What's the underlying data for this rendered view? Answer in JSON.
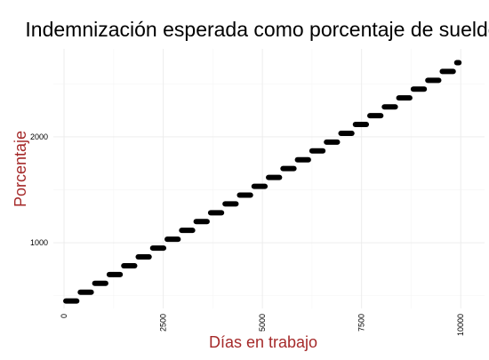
{
  "chart_data": {
    "type": "scatter",
    "title": "Indemnización esperada como porcentaje de sueldo",
    "xlabel": "Días en trabajo",
    "ylabel": "Porcentaje",
    "xlim": [
      -270,
      10600
    ],
    "ylim": [
      380,
      2830
    ],
    "xticks": [
      0,
      2500,
      5000,
      7500,
      10000
    ],
    "xtick_labels": [
      "0",
      "2500",
      "5000",
      "7500",
      "10000"
    ],
    "yticks": [
      1000,
      2000
    ],
    "ytick_labels": [
      "1000",
      "2000"
    ],
    "grid": true,
    "legend": "none",
    "step_days": 365,
    "series": [
      {
        "segments": [
          {
            "x0": 0,
            "x1": 365,
            "y": 450
          },
          {
            "x0": 365,
            "x1": 730,
            "y": 533
          },
          {
            "x0": 730,
            "x1": 1095,
            "y": 617
          },
          {
            "x0": 1095,
            "x1": 1460,
            "y": 700
          },
          {
            "x0": 1460,
            "x1": 1825,
            "y": 783
          },
          {
            "x0": 1825,
            "x1": 2190,
            "y": 867
          },
          {
            "x0": 2190,
            "x1": 2555,
            "y": 950
          },
          {
            "x0": 2555,
            "x1": 2920,
            "y": 1033
          },
          {
            "x0": 2920,
            "x1": 3285,
            "y": 1117
          },
          {
            "x0": 3285,
            "x1": 3650,
            "y": 1200
          },
          {
            "x0": 3650,
            "x1": 4015,
            "y": 1283
          },
          {
            "x0": 4015,
            "x1": 4380,
            "y": 1367
          },
          {
            "x0": 4380,
            "x1": 4745,
            "y": 1450
          },
          {
            "x0": 4745,
            "x1": 5110,
            "y": 1533
          },
          {
            "x0": 5110,
            "x1": 5475,
            "y": 1617
          },
          {
            "x0": 5475,
            "x1": 5840,
            "y": 1700
          },
          {
            "x0": 5840,
            "x1": 6205,
            "y": 1783
          },
          {
            "x0": 6205,
            "x1": 6570,
            "y": 1867
          },
          {
            "x0": 6570,
            "x1": 6935,
            "y": 1950
          },
          {
            "x0": 6935,
            "x1": 7300,
            "y": 2033
          },
          {
            "x0": 7300,
            "x1": 7665,
            "y": 2117
          },
          {
            "x0": 7665,
            "x1": 8030,
            "y": 2200
          },
          {
            "x0": 8030,
            "x1": 8395,
            "y": 2283
          },
          {
            "x0": 8395,
            "x1": 8760,
            "y": 2367
          },
          {
            "x0": 8760,
            "x1": 9125,
            "y": 2450
          },
          {
            "x0": 9125,
            "x1": 9490,
            "y": 2533
          },
          {
            "x0": 9490,
            "x1": 9855,
            "y": 2617
          },
          {
            "x0": 9855,
            "x1": 10000,
            "y": 2700
          }
        ]
      }
    ],
    "colors": {
      "points": "#000000",
      "axis_title": "#a52a2a",
      "grid": "#ebebeb"
    }
  }
}
